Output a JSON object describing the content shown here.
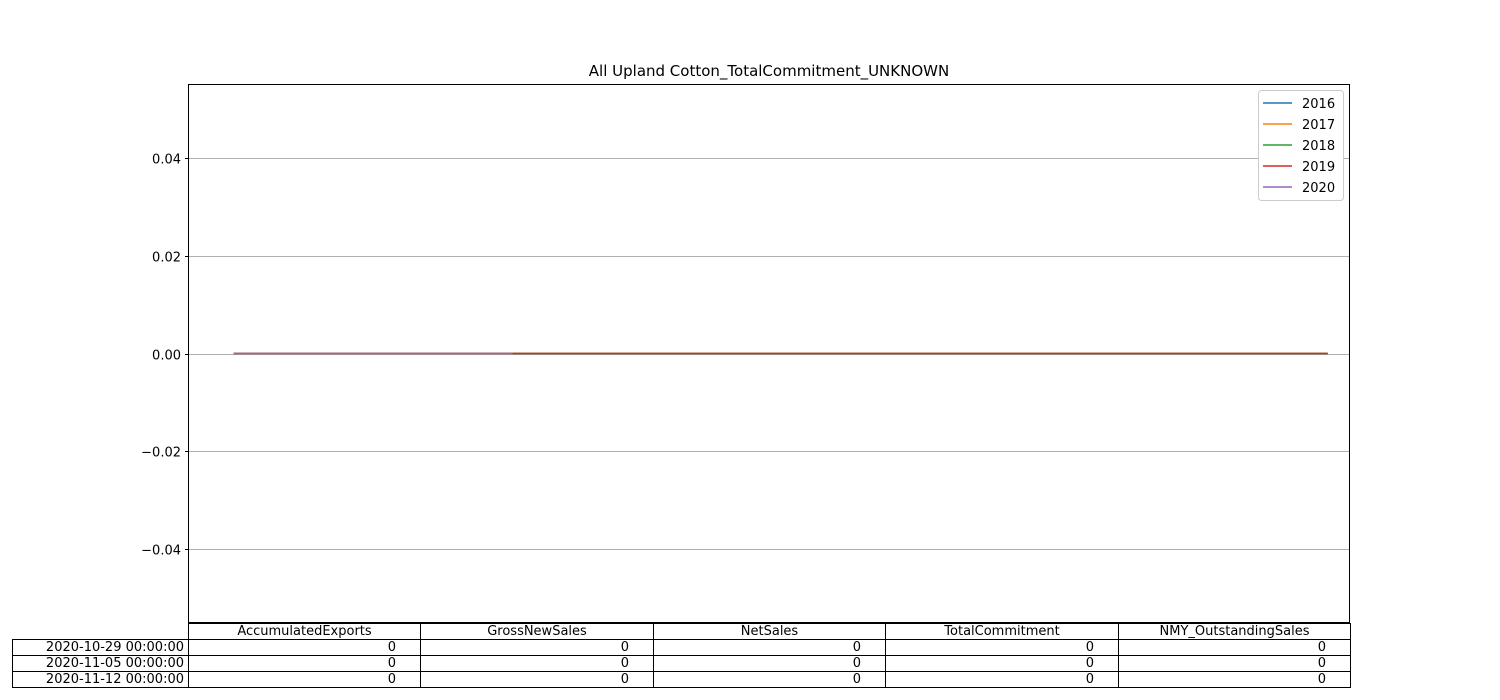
{
  "chart_data": {
    "type": "line",
    "title": "All Upland Cotton_TotalCommitment_UNKNOWN",
    "xlabel": "",
    "ylabel": "",
    "ylim": [
      -0.055,
      0.055
    ],
    "yticks": [
      "0.04",
      "0.02",
      "0.00",
      "−0.02",
      "−0.04"
    ],
    "ytick_values": [
      0.04,
      0.02,
      0.0,
      -0.02,
      -0.04
    ],
    "grid": "y",
    "legend_position": "top-right",
    "x_range": [
      0,
      52
    ],
    "series": [
      {
        "name": "2016",
        "color": "#1f77b4",
        "x": [
          2,
          51
        ],
        "y": [
          0,
          0
        ]
      },
      {
        "name": "2017",
        "color": "#ff7f0e",
        "x": [
          2,
          51
        ],
        "y": [
          0,
          0
        ]
      },
      {
        "name": "2018",
        "color": "#2ca02c",
        "x": [
          2,
          51
        ],
        "y": [
          0,
          0
        ]
      },
      {
        "name": "2019",
        "color": "#d62728",
        "x": [
          2,
          51
        ],
        "y": [
          0,
          0
        ]
      },
      {
        "name": "2020",
        "color": "#9467bd",
        "x": [
          2,
          14.5
        ],
        "y": [
          0,
          0
        ]
      }
    ]
  },
  "table": {
    "columns": [
      "AccumulatedExports",
      "GrossNewSales",
      "NetSales",
      "TotalCommitment",
      "NMY_OutstandingSales"
    ],
    "rows": [
      {
        "label": "2020-10-29 00:00:00",
        "values": [
          "0",
          "0",
          "0",
          "0",
          "0"
        ]
      },
      {
        "label": "2020-11-05 00:00:00",
        "values": [
          "0",
          "0",
          "0",
          "0",
          "0"
        ]
      },
      {
        "label": "2020-11-12 00:00:00",
        "values": [
          "0",
          "0",
          "0",
          "0",
          "0"
        ]
      }
    ]
  }
}
